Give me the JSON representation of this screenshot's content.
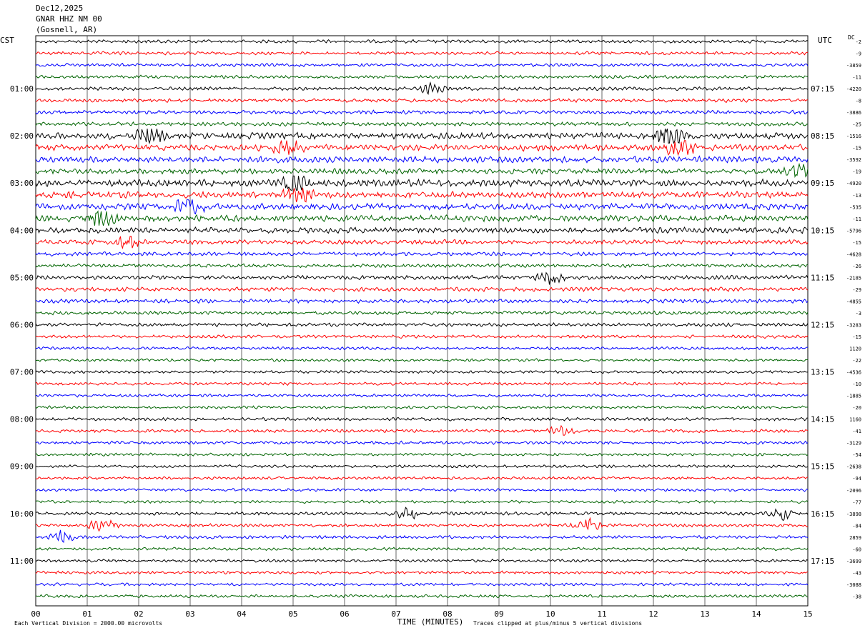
{
  "header": {
    "date": "Dec12,2025",
    "station": "GNAR HHZ NM 00",
    "location": "(Gosnell, AR)"
  },
  "left_tz": "CST",
  "right_tz": "UTC",
  "dc_label": "DC",
  "footer": {
    "scale_note": "Each Vertical Division = 2000.00 microvolts",
    "clip_note": "Traces clipped at plus/minus 5 vertical divisions"
  },
  "chart_data": {
    "type": "line",
    "title": "",
    "xlabel": "TIME (MINUTES)",
    "ylabel": "",
    "xlim": [
      0,
      15
    ],
    "x_ticks": [
      "00",
      "01",
      "02",
      "03",
      "04",
      "05",
      "06",
      "07",
      "08",
      "09",
      "10",
      "11",
      "12",
      "13",
      "14",
      "15"
    ],
    "grid": "vertical lines at each minute",
    "trace_colors": [
      "#000000",
      "#ff0000",
      "#0000ff",
      "#006400"
    ],
    "left_hour_labels": [
      "01:00",
      "02:00",
      "03:00",
      "04:00",
      "05:00",
      "06:00",
      "07:00",
      "08:00",
      "09:00",
      "10:00",
      "11:00"
    ],
    "right_hour_labels": [
      "07:15",
      "08:15",
      "09:15",
      "10:15",
      "11:15",
      "12:15",
      "13:15",
      "14:15",
      "15:15",
      "16:15",
      "17:15"
    ],
    "dc_offsets": [
      "-2",
      "-9",
      "-3859",
      "-11",
      "-4220",
      "-8",
      "-3886",
      "-25",
      "-1516",
      "-15",
      "-3592",
      "-19",
      "-4920",
      "-13",
      "-535",
      "-11",
      "-5796",
      "-15",
      "-4628",
      "-26",
      "-2185",
      "-29",
      "-4855",
      "-3",
      "-3283",
      "-15",
      "1120",
      "-22",
      "-4536",
      "-10",
      "-1885",
      "-20",
      "1160",
      "-41",
      "-3129",
      "-54",
      "-2638",
      "-94",
      "-2096",
      "-77",
      "-3898",
      "-84",
      "2859",
      "-60",
      "-3699",
      "-43",
      "-3088",
      "-38"
    ],
    "activity_levels": [
      1.0,
      1.0,
      1.0,
      1.0,
      1.1,
      1.1,
      1.2,
      1.2,
      2.0,
      1.9,
      1.9,
      1.7,
      2.2,
      2.0,
      2.0,
      2.0,
      1.8,
      1.4,
      1.2,
      1.1,
      1.3,
      1.3,
      1.2,
      1.1,
      1.1,
      1.0,
      0.9,
      0.9,
      0.9,
      0.9,
      0.9,
      0.9,
      1.0,
      1.0,
      1.0,
      0.9,
      0.9,
      0.9,
      0.9,
      0.9,
      1.0,
      1.0,
      1.0,
      0.9,
      0.9,
      0.9,
      0.9,
      0.9
    ],
    "events": [
      {
        "trace": 4,
        "minute": 7.7,
        "amp": 1.6
      },
      {
        "trace": 8,
        "minute": 2.2,
        "amp": 2.0
      },
      {
        "trace": 8,
        "minute": 12.3,
        "amp": 2.2
      },
      {
        "trace": 9,
        "minute": 12.5,
        "amp": 2.4
      },
      {
        "trace": 9,
        "minute": 4.9,
        "amp": 1.8
      },
      {
        "trace": 11,
        "minute": 14.8,
        "amp": 1.8
      },
      {
        "trace": 12,
        "minute": 5.0,
        "amp": 2.0
      },
      {
        "trace": 13,
        "minute": 5.1,
        "amp": 2.0
      },
      {
        "trace": 14,
        "minute": 3.0,
        "amp": 2.2
      },
      {
        "trace": 15,
        "minute": 1.3,
        "amp": 2.0
      },
      {
        "trace": 17,
        "minute": 1.8,
        "amp": 1.8
      },
      {
        "trace": 20,
        "minute": 10.0,
        "amp": 2.4
      },
      {
        "trace": 33,
        "minute": 10.2,
        "amp": 1.8
      },
      {
        "trace": 40,
        "minute": 7.2,
        "amp": 2.0
      },
      {
        "trace": 40,
        "minute": 14.5,
        "amp": 2.2
      },
      {
        "trace": 41,
        "minute": 1.3,
        "amp": 2.4
      },
      {
        "trace": 41,
        "minute": 10.7,
        "amp": 2.4
      },
      {
        "trace": 42,
        "minute": 0.5,
        "amp": 2.2
      }
    ]
  }
}
